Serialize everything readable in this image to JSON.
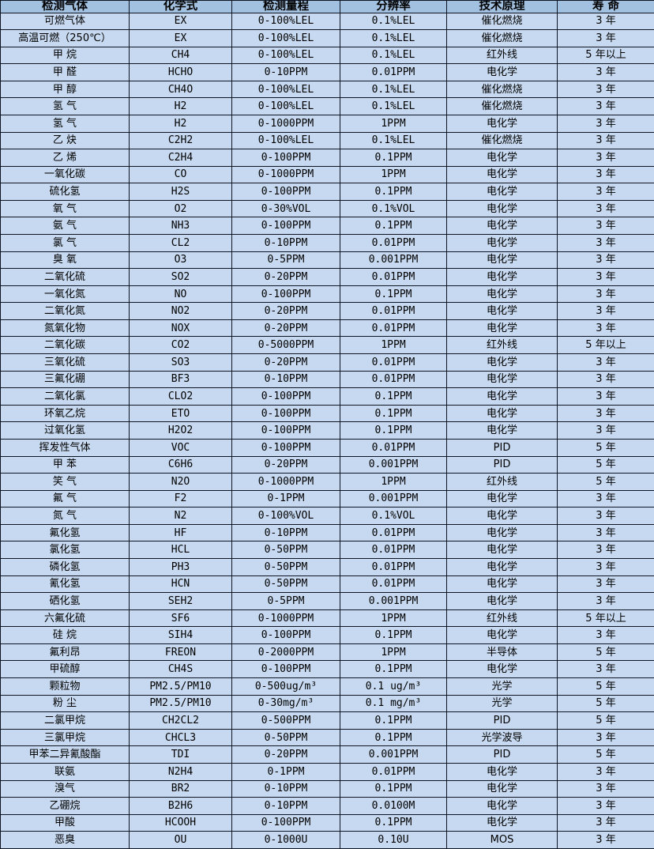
{
  "colors": {
    "header_bg": "#a2c0e0",
    "row_bg": "#c7d9f0",
    "border": "#0e1422",
    "text": "#000000"
  },
  "table": {
    "headers": [
      "检测气体",
      "化学式",
      "检测量程",
      "分辨率",
      "技术原理",
      "寿 命"
    ],
    "rows": [
      [
        "可燃气体",
        "EX",
        "0-100%LEL",
        "0.1%LEL",
        "催化燃烧",
        "3 年"
      ],
      [
        "高温可燃（250℃）",
        "EX",
        "0-100%LEL",
        "0.1%LEL",
        "催化燃烧",
        "3 年"
      ],
      [
        "甲 烷",
        "CH4",
        "0-100%LEL",
        "0.1%LEL",
        "红外线",
        "5 年以上"
      ],
      [
        "甲 醛",
        "HCHO",
        "0-10PPM",
        "0.01PPM",
        "电化学",
        "3 年"
      ],
      [
        "甲 醇",
        "CH4O",
        "0-100%LEL",
        "0.1%LEL",
        "催化燃烧",
        "3 年"
      ],
      [
        "氢 气",
        "H2",
        "0-100%LEL",
        "0.1%LEL",
        "催化燃烧",
        "3 年"
      ],
      [
        "氢 气",
        "H2",
        "0-1000PPM",
        "1PPM",
        "电化学",
        "3 年"
      ],
      [
        "乙 炔",
        "C2H2",
        "0-100%LEL",
        "0.1%LEL",
        "催化燃烧",
        "3 年"
      ],
      [
        "乙 烯",
        "C2H4",
        "0-100PPM",
        "0.1PPM",
        "电化学",
        "3 年"
      ],
      [
        "一氧化碳",
        "CO",
        "0-1000PPM",
        "1PPM",
        "电化学",
        "3 年"
      ],
      [
        "硫化氢",
        "H2S",
        "0-100PPM",
        "0.1PPM",
        "电化学",
        "3 年"
      ],
      [
        "氧 气",
        "O2",
        "0-30%VOL",
        "0.1%VOL",
        "电化学",
        "3 年"
      ],
      [
        "氨 气",
        "NH3",
        "0-100PPM",
        "0.1PPM",
        "电化学",
        "3 年"
      ],
      [
        "氯 气",
        "CL2",
        "0-10PPM",
        "0.01PPM",
        "电化学",
        "3 年"
      ],
      [
        "臭 氧",
        "O3",
        "0-5PPM",
        "0.001PPM",
        "电化学",
        "3 年"
      ],
      [
        "二氧化硫",
        "SO2",
        "0-20PPM",
        "0.01PPM",
        "电化学",
        "3 年"
      ],
      [
        "一氧化氮",
        "NO",
        "0-100PPM",
        "0.1PPM",
        "电化学",
        "3 年"
      ],
      [
        "二氧化氮",
        "NO2",
        "0-20PPM",
        "0.01PPM",
        "电化学",
        "3 年"
      ],
      [
        "氮氧化物",
        "NOX",
        "0-20PPM",
        "0.01PPM",
        "电化学",
        "3 年"
      ],
      [
        "二氧化碳",
        "CO2",
        "0-5000PPM",
        "1PPM",
        "红外线",
        "5 年以上"
      ],
      [
        "三氧化硫",
        "SO3",
        "0-20PPM",
        "0.01PPM",
        "电化学",
        "3 年"
      ],
      [
        "三氟化硼",
        "BF3",
        "0-10PPM",
        "0.01PPM",
        "电化学",
        "3 年"
      ],
      [
        "二氧化氯",
        "CLO2",
        "0-100PPM",
        "0.1PPM",
        "电化学",
        "3 年"
      ],
      [
        "环氧乙烷",
        "ETO",
        "0-100PPM",
        "0.1PPM",
        "电化学",
        "3 年"
      ],
      [
        "过氧化氢",
        "H2O2",
        "0-100PPM",
        "0.1PPM",
        "电化学",
        "3 年"
      ],
      [
        "挥发性气体",
        "VOC",
        "0-100PPM",
        "0.01PPM",
        "PID",
        "5 年"
      ],
      [
        "甲 苯",
        "C6H6",
        "0-20PPM",
        "0.001PPM",
        "PID",
        "5 年"
      ],
      [
        "笑 气",
        "N2O",
        "0-1000PPM",
        "1PPM",
        "红外线",
        "5 年"
      ],
      [
        "氟 气",
        "F2",
        "0-1PPM",
        "0.001PPM",
        "电化学",
        "3 年"
      ],
      [
        "氮 气",
        "N2",
        "0-100%VOL",
        "0.1%VOL",
        "电化学",
        "3 年"
      ],
      [
        "氟化氢",
        "HF",
        "0-10PPM",
        "0.01PPM",
        "电化学",
        "3 年"
      ],
      [
        "氯化氢",
        "HCL",
        "0-50PPM",
        "0.01PPM",
        "电化学",
        "3 年"
      ],
      [
        "磷化氢",
        "PH3",
        "0-50PPM",
        "0.01PPM",
        "电化学",
        "3 年"
      ],
      [
        "氰化氢",
        "HCN",
        "0-50PPM",
        "0.01PPM",
        "电化学",
        "3 年"
      ],
      [
        "硒化氢",
        "SEH2",
        "0-5PPM",
        "0.001PPM",
        "电化学",
        "3 年"
      ],
      [
        "六氟化硫",
        "SF6",
        "0-1000PPM",
        "1PPM",
        "红外线",
        "5 年以上"
      ],
      [
        "硅 烷",
        "SIH4",
        "0-100PPM",
        "0.1PPM",
        "电化学",
        "3 年"
      ],
      [
        "氟利昂",
        "FREON",
        "0-2000PPM",
        "1PPM",
        "半导体",
        "5 年"
      ],
      [
        "甲硫醇",
        "CH4S",
        "0-100PPM",
        "0.1PPM",
        "电化学",
        "3 年"
      ],
      [
        "颗粒物",
        "PM2.5/PM10",
        "0-500ug/m³",
        "0.1 ug/m³",
        "光学",
        "5 年"
      ],
      [
        "粉 尘",
        "PM2.5/PM10",
        "0-30mg/m³",
        "0.1 mg/m³",
        "光学",
        "5 年"
      ],
      [
        "二氯甲烷",
        "CH2CL2",
        "0-500PPM",
        "0.1PPM",
        "PID",
        "5 年"
      ],
      [
        "三氯甲烷",
        "CHCL3",
        "0-50PPM",
        "0.1PPM",
        "光学波导",
        "3 年"
      ],
      [
        "甲苯二异氰酸酯",
        "TDI",
        "0-20PPM",
        "0.001PPM",
        "PID",
        "5 年"
      ],
      [
        "联氨",
        "N2H4",
        "0-1PPM",
        "0.01PPM",
        "电化学",
        "3 年"
      ],
      [
        "溴气",
        "BR2",
        "0-10PPM",
        "0.1PPM",
        "电化学",
        "3 年"
      ],
      [
        "乙硼烷",
        "B2H6",
        "0-10PPM",
        "0.0100M",
        "电化学",
        "3 年"
      ],
      [
        "甲酸",
        "HCOOH",
        "0-100PPM",
        "0.1PPM",
        "电化学",
        "3 年"
      ],
      [
        "恶臭",
        "OU",
        "0-1000U",
        "0.10U",
        "MOS",
        "3 年"
      ]
    ]
  }
}
